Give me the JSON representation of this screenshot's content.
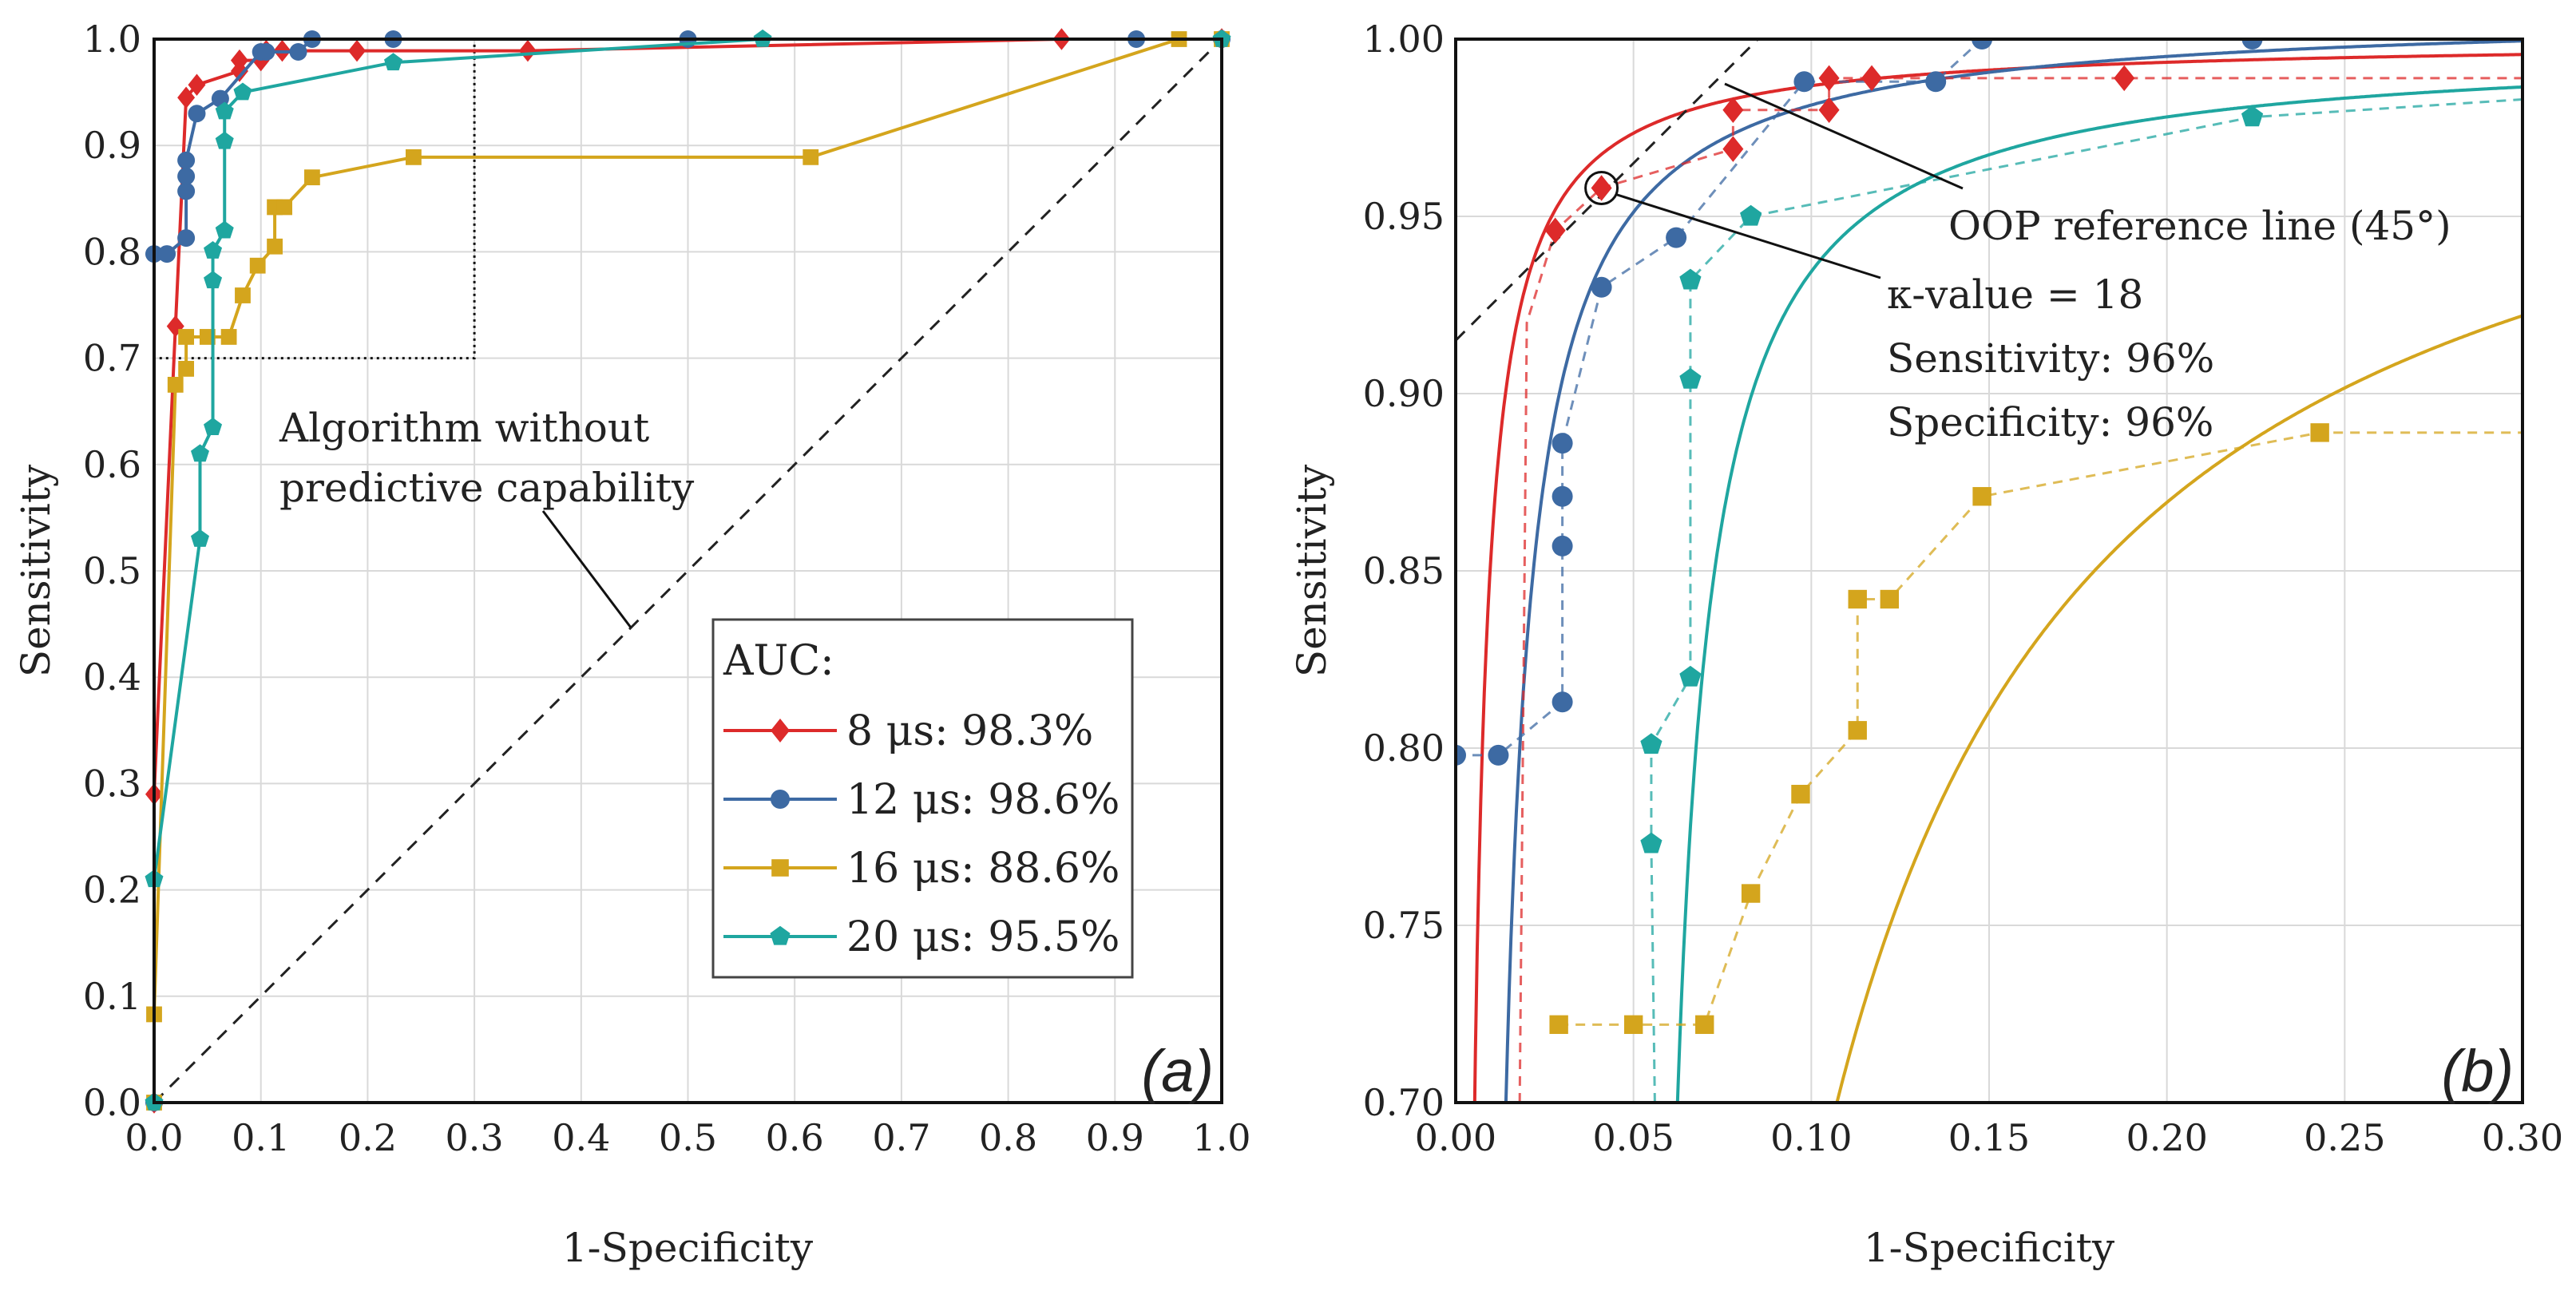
{
  "colors": {
    "s8": "#dd2a2a",
    "s12": "#3d6aa3",
    "s16": "#d4a51d",
    "s20": "#1fa6a0",
    "axis": "#111111",
    "grid": "#d9d9d9"
  },
  "chart_data": [
    {
      "panel": "(a)",
      "type": "line",
      "xlabel": "1-Specificity",
      "ylabel": "Sensitivity",
      "xlim": [
        0,
        1
      ],
      "ylim": [
        0,
        1
      ],
      "xticks": [
        "0.0",
        "0.1",
        "0.2",
        "0.3",
        "0.4",
        "0.5",
        "0.6",
        "0.7",
        "0.8",
        "0.9",
        "1.0"
      ],
      "yticks": [
        "0.0",
        "0.1",
        "0.2",
        "0.3",
        "0.4",
        "0.5",
        "0.6",
        "0.7",
        "0.8",
        "0.9",
        "1.0"
      ],
      "grid": true,
      "legend_title": "AUC:",
      "legend_position": "bottom-right",
      "series": [
        {
          "key": "s8",
          "name": "8 μs: 98.3%",
          "marker": "diamond",
          "x": [
            0,
            0,
            0.02,
            0.03,
            0.04,
            0.08,
            0.08,
            0.1,
            0.105,
            0.12,
            0.19,
            0.35,
            0.85,
            1
          ],
          "y": [
            0,
            0.29,
            0.73,
            0.945,
            0.957,
            0.97,
            0.98,
            0.98,
            0.989,
            0.989,
            0.989,
            0.989,
            1,
            1
          ]
        },
        {
          "key": "s12",
          "name": "12 μs: 98.6%",
          "marker": "circle",
          "x": [
            0,
            0,
            0.012,
            0.03,
            0.03,
            0.03,
            0.03,
            0.04,
            0.062,
            0.1,
            0.105,
            0.135,
            0.148,
            0.224,
            0.5,
            0.92,
            1
          ],
          "y": [
            0,
            0.798,
            0.798,
            0.813,
            0.857,
            0.871,
            0.886,
            0.93,
            0.944,
            0.988,
            0.988,
            0.988,
            1,
            1,
            1,
            1,
            1
          ]
        },
        {
          "key": "s16",
          "name": "16 μs: 88.6%",
          "marker": "square",
          "x": [
            0,
            0,
            0.02,
            0.03,
            0.03,
            0.05,
            0.07,
            0.083,
            0.097,
            0.113,
            0.113,
            0.122,
            0.148,
            0.243,
            0.615,
            0.96,
            1
          ],
          "y": [
            0,
            0.083,
            0.675,
            0.69,
            0.72,
            0.72,
            0.72,
            0.759,
            0.787,
            0.805,
            0.842,
            0.842,
            0.87,
            0.889,
            0.889,
            1,
            1
          ]
        },
        {
          "key": "s20",
          "name": "20 μs: 95.5%",
          "marker": "pentagon",
          "x": [
            0,
            0,
            0.043,
            0.043,
            0.055,
            0.055,
            0.055,
            0.066,
            0.066,
            0.066,
            0.083,
            0.224,
            0.57,
            1
          ],
          "y": [
            0,
            0.21,
            0.53,
            0.61,
            0.635,
            0.773,
            0.801,
            0.82,
            0.904,
            0.932,
            0.95,
            0.978,
            1,
            1
          ]
        }
      ],
      "reference_line": {
        "x": [
          0,
          1
        ],
        "y": [
          0,
          1
        ]
      },
      "zoom_box": {
        "x": [
          0,
          0.3
        ],
        "y": [
          0.7,
          1.0
        ]
      },
      "annotation_line1": "Algorithm without",
      "annotation_line2": "predictive capability"
    },
    {
      "panel": "(b)",
      "type": "line",
      "xlabel": "1-Specificity",
      "ylabel": "Sensitivity",
      "xlim": [
        0,
        0.3
      ],
      "ylim": [
        0.7,
        1.0
      ],
      "xticks": [
        "0.00",
        "0.05",
        "0.10",
        "0.15",
        "0.20",
        "0.25",
        "0.30"
      ],
      "yticks": [
        "0.70",
        "0.75",
        "0.80",
        "0.85",
        "0.90",
        "0.95",
        "1.00"
      ],
      "grid": true,
      "series": [
        {
          "key": "s8",
          "name": "8 μs",
          "points": {
            "x": [
              0.028,
              0.041,
              0.078,
              0.078,
              0.105,
              0.105,
              0.117,
              0.188
            ],
            "y": [
              0.946,
              0.958,
              0.969,
              0.98,
              0.98,
              0.989,
              0.989,
              0.989
            ]
          },
          "step_x": [
            0.018,
            0.02,
            0.028,
            0.041,
            0.078,
            0.078,
            0.105,
            0.105,
            0.117,
            0.188,
            0.3
          ],
          "step_y": [
            0.7,
            0.92,
            0.946,
            0.958,
            0.969,
            0.98,
            0.98,
            0.989,
            0.989,
            0.989,
            0.989
          ],
          "fit": {
            "a": 0.001,
            "b": 0.0013,
            "c": 1.0
          }
        },
        {
          "key": "s12",
          "name": "12 μs",
          "points": {
            "x": [
              0,
              0.012,
              0.03,
              0.03,
              0.03,
              0.03,
              0.041,
              0.062,
              0.098,
              0.135,
              0.148,
              0.224
            ],
            "y": [
              0.798,
              0.798,
              0.813,
              0.857,
              0.871,
              0.886,
              0.93,
              0.944,
              0.988,
              0.988,
              1,
              1
            ]
          },
          "step_x": [
            0,
            0.012,
            0.03,
            0.03,
            0.03,
            0.03,
            0.041,
            0.062,
            0.098,
            0.135,
            0.148,
            0.224,
            0.3
          ],
          "step_y": [
            0.798,
            0.798,
            0.813,
            0.857,
            0.871,
            0.886,
            0.93,
            0.944,
            0.988,
            0.988,
            1,
            1,
            1
          ],
          "fit": {
            "a": 0.006,
            "b": 0.0025,
            "c": 1.008
          }
        },
        {
          "key": "s16",
          "name": "16 μs",
          "points": {
            "x": [
              0.029,
              0.05,
              0.07,
              0.083,
              0.097,
              0.113,
              0.113,
              0.122,
              0.148,
              0.243
            ],
            "y": [
              0.722,
              0.722,
              0.722,
              0.759,
              0.787,
              0.805,
              0.842,
              0.842,
              0.871,
              0.889
            ]
          },
          "step_x": [
            0.029,
            0.05,
            0.07,
            0.083,
            0.097,
            0.113,
            0.113,
            0.122,
            0.148,
            0.243,
            0.3
          ],
          "step_y": [
            0.722,
            0.722,
            0.722,
            0.759,
            0.787,
            0.805,
            0.842,
            0.842,
            0.871,
            0.889,
            0.889
          ],
          "fit": {
            "a": 0.029,
            "b": 0.0244,
            "c": 1.012
          }
        },
        {
          "key": "s20",
          "name": "20 μs",
          "points": {
            "x": [
              0.055,
              0.055,
              0.066,
              0.066,
              0.066,
              0.083,
              0.224
            ],
            "y": [
              0.773,
              0.801,
              0.82,
              0.904,
              0.932,
              0.95,
              0.978
            ]
          },
          "step_x": [
            0.056,
            0.055,
            0.055,
            0.066,
            0.066,
            0.066,
            0.083,
            0.224,
            0.3
          ],
          "step_y": [
            0.7,
            0.773,
            0.801,
            0.82,
            0.904,
            0.932,
            0.95,
            0.978,
            0.983
          ],
          "fit": {
            "a": 0.052,
            "b": 0.0031,
            "c": 0.999
          }
        }
      ],
      "oop_line": {
        "x": [
          0,
          0.085
        ],
        "y": [
          0.915,
          1.0
        ]
      },
      "oop_label": "OOP reference line (45°)",
      "optimum_point": {
        "x": 0.041,
        "y": 0.958
      },
      "kappa_label": "κ-value = 18",
      "sensitivity_label": "Sensitivity: 96%",
      "specificity_label": "Specificity: 96%"
    }
  ]
}
